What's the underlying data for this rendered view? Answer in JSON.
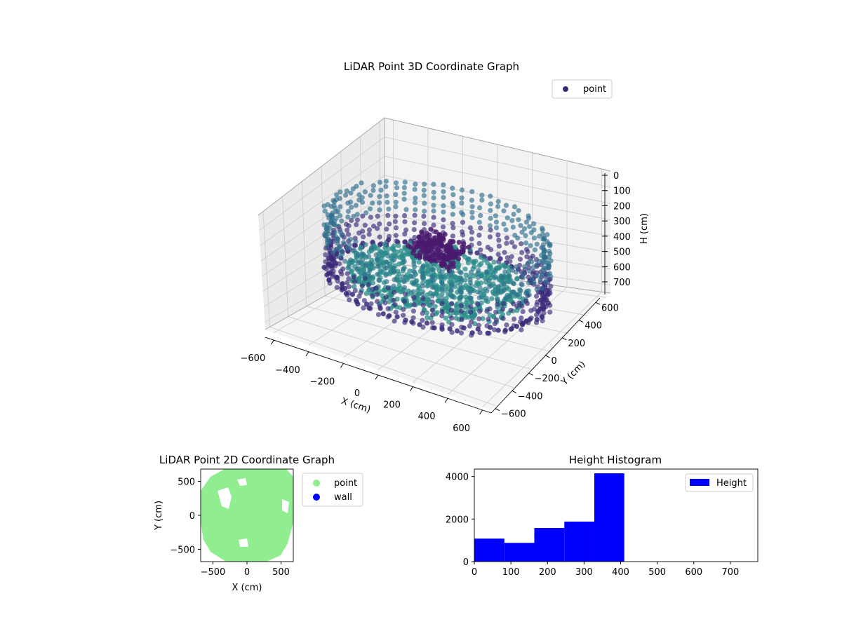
{
  "colors": {
    "point_dark": "#3b2a7a",
    "point_mid": "#2f6f8e",
    "point_teal": "#2a8c8a",
    "scatter2d_point": "#90ee90",
    "scatter2d_wall": "#0000ff",
    "histogram_bar": "#0000ff"
  },
  "chart_data": [
    {
      "type": "scatter",
      "projection": "3d",
      "title": "LiDAR Point 3D Coordinate Graph",
      "xlabel": "X (cm)",
      "ylabel": "Y (cm)",
      "zlabel": "H (cm)",
      "x_ticks": [
        "−600",
        "−400",
        "−200",
        "0",
        "200",
        "400",
        "600"
      ],
      "y_ticks": [
        "−600",
        "−400",
        "−200",
        "0",
        "200",
        "400",
        "600"
      ],
      "z_ticks": [
        "0",
        "100",
        "200",
        "300",
        "400",
        "500",
        "600",
        "700"
      ],
      "xlim": [
        -650,
        650
      ],
      "ylim": [
        -650,
        650
      ],
      "zlim": [
        0,
        750
      ],
      "z_inverted": true,
      "grid": true,
      "legend": {
        "position": "top-right",
        "entries": [
          "point"
        ]
      },
      "series": [
        {
          "name": "point",
          "structure": "ring-shaped outer wall points at radius ~550 cm spanning heights ~0-420 cm, with an interior floor/object cloud at heights ~350-420 cm and an interior object near the centre at height ~150-250 cm"
        }
      ]
    },
    {
      "type": "scatter",
      "title": "LiDAR Point 2D Coordinate Graph",
      "xlabel": "X (cm)",
      "ylabel": "Y (cm)",
      "x_ticks": [
        "−500",
        "0",
        "500"
      ],
      "y_ticks": [
        "−500",
        "0",
        "500"
      ],
      "xlim": [
        -680,
        680
      ],
      "ylim": [
        -680,
        680
      ],
      "legend": {
        "position": "outside-right",
        "entries": [
          "point",
          "wall"
        ]
      },
      "series": [
        {
          "name": "point",
          "structure": "dense filled disk of points with radius ~600 cm"
        },
        {
          "name": "wall",
          "structure": "no visible points"
        }
      ]
    },
    {
      "type": "bar",
      "histogram": true,
      "title": "Height Histogram",
      "xlabel": "",
      "ylabel": "",
      "x_ticks": [
        "0",
        "100",
        "200",
        "300",
        "400",
        "500",
        "600",
        "700"
      ],
      "y_ticks": [
        "0",
        "2000",
        "4000"
      ],
      "xlim": [
        0,
        775
      ],
      "ylim": [
        0,
        4350
      ],
      "legend": {
        "position": "top-right",
        "entries": [
          "Height"
        ]
      },
      "bins": [
        {
          "x0": 0,
          "x1": 82,
          "count": 1080
        },
        {
          "x0": 82,
          "x1": 164,
          "count": 880
        },
        {
          "x0": 164,
          "x1": 246,
          "count": 1580
        },
        {
          "x0": 246,
          "x1": 328,
          "count": 1880
        },
        {
          "x0": 328,
          "x1": 410,
          "count": 4150
        }
      ]
    }
  ]
}
